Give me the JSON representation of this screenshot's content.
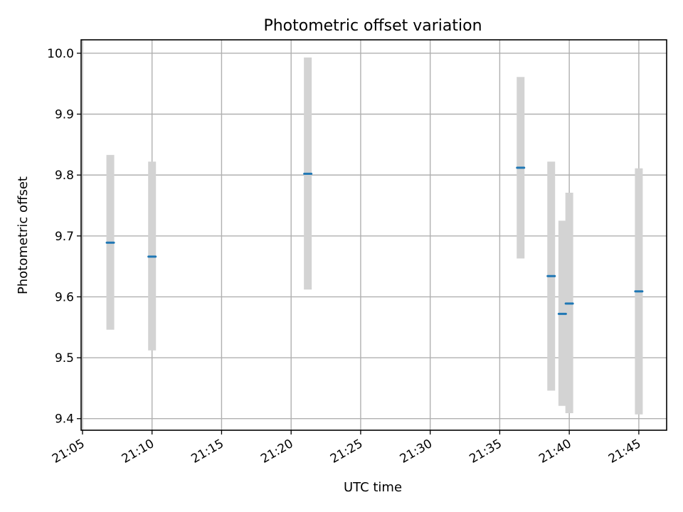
{
  "chart_data": {
    "type": "scatter",
    "title": "Photometric offset variation",
    "xlabel": "UTC time",
    "ylabel": "Photometric offset",
    "x_tick_labels": [
      "21:05",
      "21:10",
      "21:15",
      "21:20",
      "21:25",
      "21:30",
      "21:35",
      "21:40",
      "21:45"
    ],
    "y_tick_labels": [
      "9.4",
      "9.5",
      "9.6",
      "9.7",
      "9.8",
      "9.9",
      "10.0"
    ],
    "xlim": [
      "21:04.9",
      "21:47.0"
    ],
    "ylim": [
      9.381,
      10.022
    ],
    "grid": true,
    "error_bar_color": "#d3d3d3",
    "marker_color": "#1f77b4",
    "points": [
      {
        "time": "21:07.0",
        "offset": 9.689,
        "err_low": 9.546,
        "err_high": 9.833
      },
      {
        "time": "21:10.0",
        "offset": 9.666,
        "err_low": 9.512,
        "err_high": 9.822
      },
      {
        "time": "21:21.2",
        "offset": 9.802,
        "err_low": 9.612,
        "err_high": 9.993
      },
      {
        "time": "21:36.5",
        "offset": 9.812,
        "err_low": 9.663,
        "err_high": 9.961
      },
      {
        "time": "21:38.7",
        "offset": 9.634,
        "err_low": 9.446,
        "err_high": 9.822
      },
      {
        "time": "21:39.5",
        "offset": 9.572,
        "err_low": 9.421,
        "err_high": 9.725
      },
      {
        "time": "21:40.0",
        "offset": 9.589,
        "err_low": 9.409,
        "err_high": 9.771
      },
      {
        "time": "21:45.0",
        "offset": 9.609,
        "err_low": 9.407,
        "err_high": 9.811
      }
    ]
  }
}
